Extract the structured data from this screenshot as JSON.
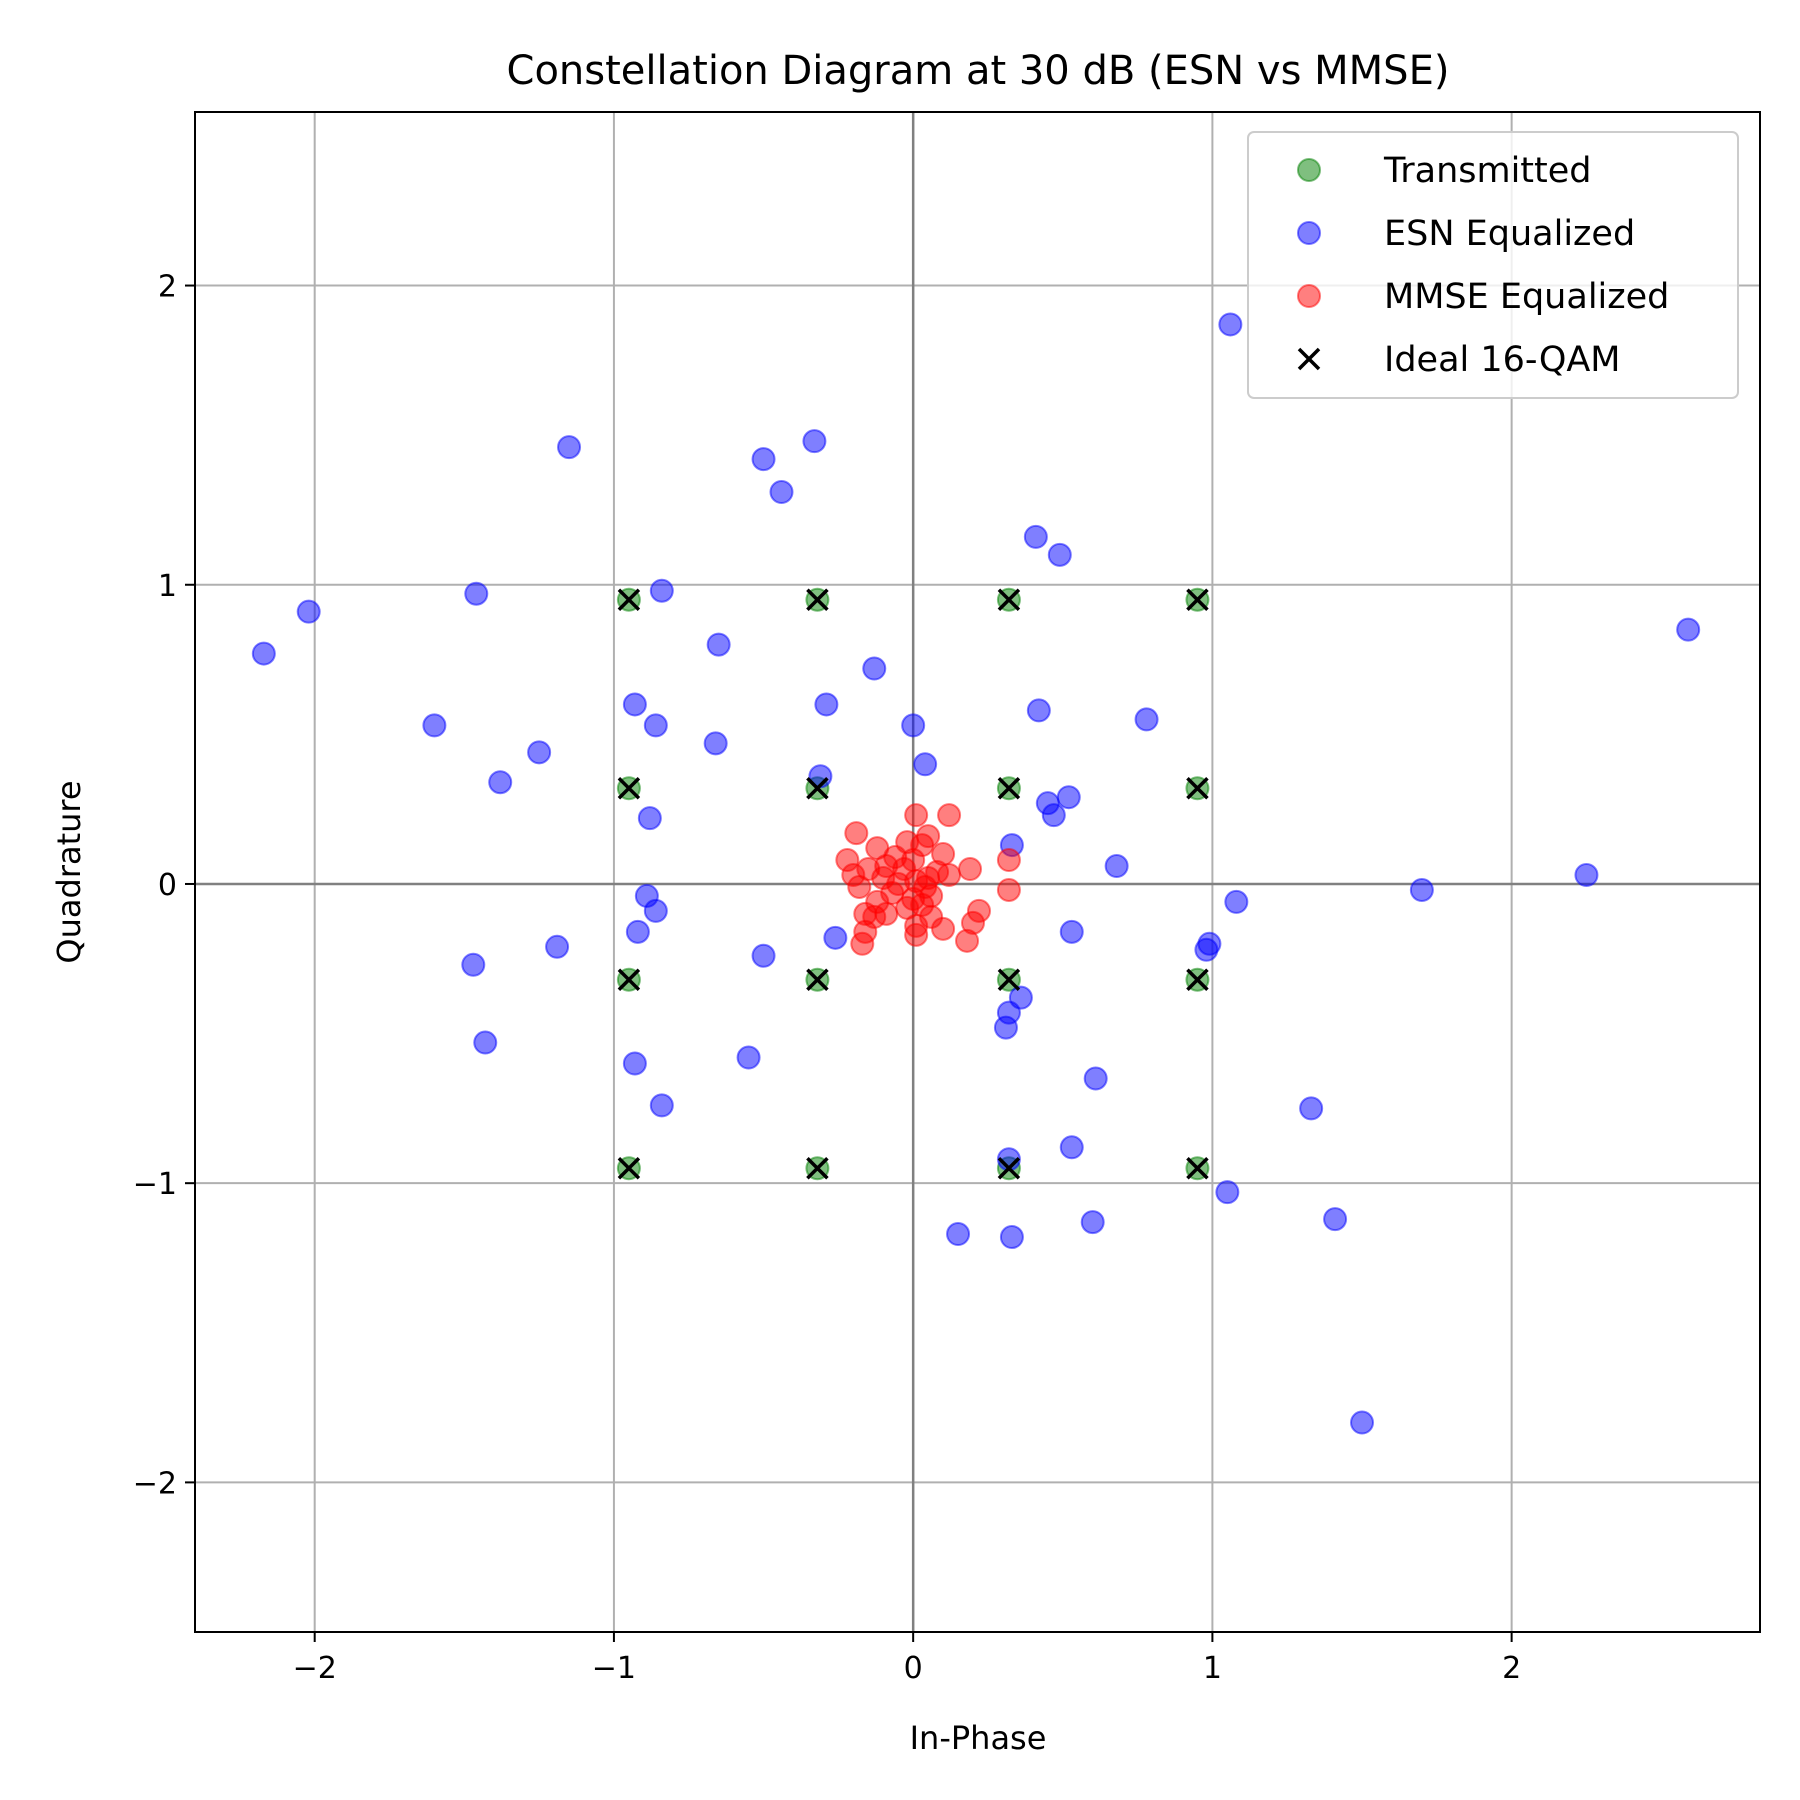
{
  "chart_data": {
    "type": "scatter",
    "title": "Constellation Diagram at 30 dB (ESN vs MMSE)",
    "xlabel": "In-Phase",
    "ylabel": "Quadrature",
    "xlim": [
      -2.4,
      2.83
    ],
    "ylim": [
      -2.5,
      2.58
    ],
    "xticks": [
      -2,
      -1,
      0,
      1,
      2
    ],
    "yticks": [
      -2,
      -1,
      0,
      1,
      2
    ],
    "xtick_labels": [
      "−2",
      "−1",
      "0",
      "1",
      "2"
    ],
    "ytick_labels": [
      "−2",
      "−1",
      "0",
      "1",
      "2"
    ],
    "grid": true,
    "legend_position": "top-right",
    "series": [
      {
        "name": "Transmitted",
        "color": "#008000",
        "marker": "circle",
        "points": [
          [
            -0.95,
            0.95
          ],
          [
            -0.32,
            0.95
          ],
          [
            0.32,
            0.95
          ],
          [
            0.95,
            0.95
          ],
          [
            -0.95,
            0.32
          ],
          [
            -0.32,
            0.32
          ],
          [
            0.32,
            0.32
          ],
          [
            0.95,
            0.32
          ],
          [
            -0.95,
            -0.32
          ],
          [
            -0.32,
            -0.32
          ],
          [
            0.32,
            -0.32
          ],
          [
            0.95,
            -0.32
          ],
          [
            -0.95,
            -0.95
          ],
          [
            -0.32,
            -0.95
          ],
          [
            0.32,
            -0.95
          ],
          [
            0.95,
            -0.95
          ]
        ]
      },
      {
        "name": "ESN Equalized",
        "color": "#0000ff",
        "marker": "circle",
        "points": [
          [
            1.06,
            1.87
          ],
          [
            -1.15,
            1.46
          ],
          [
            -0.33,
            1.48
          ],
          [
            -0.5,
            1.42
          ],
          [
            -0.44,
            1.31
          ],
          [
            0.41,
            1.16
          ],
          [
            0.49,
            1.1
          ],
          [
            -2.02,
            0.91
          ],
          [
            -2.17,
            0.77
          ],
          [
            -1.46,
            0.97
          ],
          [
            -0.84,
            0.98
          ],
          [
            -0.65,
            0.8
          ],
          [
            -0.13,
            0.72
          ],
          [
            2.59,
            0.85
          ],
          [
            -0.93,
            0.6
          ],
          [
            -0.29,
            0.6
          ],
          [
            0.42,
            0.58
          ],
          [
            0.78,
            0.55
          ],
          [
            -1.6,
            0.53
          ],
          [
            -0.86,
            0.53
          ],
          [
            0.0,
            0.53
          ],
          [
            -0.66,
            0.47
          ],
          [
            -1.25,
            0.44
          ],
          [
            0.04,
            0.4
          ],
          [
            -1.38,
            0.34
          ],
          [
            -0.31,
            0.36
          ],
          [
            0.45,
            0.27
          ],
          [
            0.52,
            0.29
          ],
          [
            -0.88,
            0.22
          ],
          [
            0.47,
            0.23
          ],
          [
            0.33,
            0.13
          ],
          [
            0.68,
            0.06
          ],
          [
            2.25,
            0.03
          ],
          [
            1.7,
            -0.02
          ],
          [
            -0.89,
            -0.04
          ],
          [
            -0.86,
            -0.09
          ],
          [
            1.08,
            -0.06
          ],
          [
            -0.92,
            -0.16
          ],
          [
            -0.26,
            -0.18
          ],
          [
            0.53,
            -0.16
          ],
          [
            -1.47,
            -0.27
          ],
          [
            -1.19,
            -0.21
          ],
          [
            -0.5,
            -0.24
          ],
          [
            0.99,
            -0.2
          ],
          [
            0.98,
            -0.22
          ],
          [
            0.36,
            -0.38
          ],
          [
            0.32,
            -0.43
          ],
          [
            0.31,
            -0.48
          ],
          [
            -1.43,
            -0.53
          ],
          [
            -0.55,
            -0.58
          ],
          [
            -0.93,
            -0.6
          ],
          [
            0.61,
            -0.65
          ],
          [
            -0.84,
            -0.74
          ],
          [
            1.33,
            -0.75
          ],
          [
            0.53,
            -0.88
          ],
          [
            0.32,
            -0.92
          ],
          [
            1.05,
            -1.03
          ],
          [
            0.6,
            -1.13
          ],
          [
            1.41,
            -1.12
          ],
          [
            0.15,
            -1.17
          ],
          [
            0.33,
            -1.18
          ],
          [
            1.5,
            -1.8
          ]
        ]
      },
      {
        "name": "MMSE Equalized",
        "color": "#ff0000",
        "marker": "circle",
        "points": [
          [
            0.01,
            0.23
          ],
          [
            0.12,
            0.23
          ],
          [
            -0.19,
            0.17
          ],
          [
            0.05,
            0.16
          ],
          [
            -0.02,
            0.14
          ],
          [
            0.03,
            0.13
          ],
          [
            -0.12,
            0.12
          ],
          [
            0.1,
            0.1
          ],
          [
            0.32,
            0.08
          ],
          [
            -0.06,
            0.09
          ],
          [
            -0.22,
            0.08
          ],
          [
            0.0,
            0.08
          ],
          [
            0.19,
            0.05
          ],
          [
            -0.09,
            0.06
          ],
          [
            -0.15,
            0.05
          ],
          [
            -0.03,
            0.05
          ],
          [
            0.08,
            0.04
          ],
          [
            0.12,
            0.03
          ],
          [
            -0.2,
            0.03
          ],
          [
            0.05,
            0.02
          ],
          [
            -0.1,
            0.02
          ],
          [
            0.01,
            0.01
          ],
          [
            -0.05,
            0.0
          ],
          [
            0.04,
            -0.01
          ],
          [
            -0.18,
            -0.01
          ],
          [
            0.32,
            -0.02
          ],
          [
            -0.07,
            -0.03
          ],
          [
            0.06,
            -0.04
          ],
          [
            0.0,
            -0.05
          ],
          [
            -0.12,
            -0.06
          ],
          [
            0.03,
            -0.07
          ],
          [
            -0.02,
            -0.08
          ],
          [
            0.22,
            -0.09
          ],
          [
            -0.09,
            -0.1
          ],
          [
            -0.16,
            -0.1
          ],
          [
            -0.13,
            -0.11
          ],
          [
            0.06,
            -0.11
          ],
          [
            0.2,
            -0.13
          ],
          [
            0.01,
            -0.14
          ],
          [
            0.1,
            -0.15
          ],
          [
            -0.16,
            -0.16
          ],
          [
            0.01,
            -0.17
          ],
          [
            0.18,
            -0.19
          ],
          [
            -0.17,
            -0.2
          ]
        ]
      },
      {
        "name": "Ideal 16-QAM",
        "color": "#000000",
        "marker": "x",
        "points": [
          [
            -0.95,
            0.95
          ],
          [
            -0.32,
            0.95
          ],
          [
            0.32,
            0.95
          ],
          [
            0.95,
            0.95
          ],
          [
            -0.95,
            0.32
          ],
          [
            -0.32,
            0.32
          ],
          [
            0.32,
            0.32
          ],
          [
            0.95,
            0.32
          ],
          [
            -0.95,
            -0.32
          ],
          [
            -0.32,
            -0.32
          ],
          [
            0.32,
            -0.32
          ],
          [
            0.95,
            -0.32
          ],
          [
            -0.95,
            -0.95
          ],
          [
            -0.32,
            -0.95
          ],
          [
            0.32,
            -0.95
          ],
          [
            0.95,
            -0.95
          ]
        ]
      }
    ]
  }
}
